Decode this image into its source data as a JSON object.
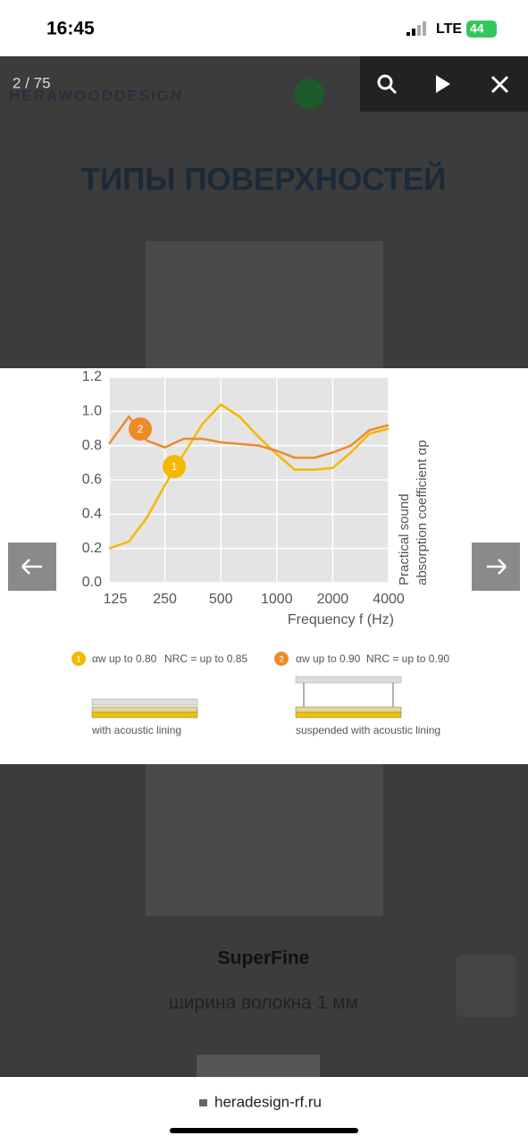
{
  "status_bar": {
    "time": "16:45",
    "network": "LTE",
    "battery": "44"
  },
  "viewer": {
    "counter": "2 / 75"
  },
  "site": {
    "logo": "HERAWOODDESIGN",
    "heading": "ТИПЫ ПОВЕРХНОСТЕЙ",
    "product": "SuperFine",
    "product_note": "ширина волокна 1 мм"
  },
  "browser": {
    "url": "heradesign-rf.ru"
  },
  "chart_data": {
    "type": "line",
    "x_label": "Frequency f (Hz)",
    "y_label": [
      "Practical sound",
      "absorption coefficient αp"
    ],
    "x": [
      125,
      160,
      200,
      250,
      315,
      400,
      500,
      630,
      800,
      1000,
      1250,
      1600,
      2000,
      2500,
      3150,
      4000
    ],
    "xscale": "log",
    "xlim": [
      125,
      4000
    ],
    "xticks": [
      125,
      250,
      500,
      1000,
      2000,
      4000
    ],
    "ylim": [
      0,
      1.2
    ],
    "yticks": [
      {
        "value": 0,
        "label": "0.0"
      },
      0.2,
      0.4,
      0.6,
      0.8,
      {
        "value": 1,
        "label": "1.0"
      },
      1.2
    ],
    "grid": true,
    "series": [
      {
        "name": "1",
        "color": "#f5b800",
        "values": [
          0.2,
          0.24,
          0.38,
          0.57,
          0.75,
          0.93,
          1.04,
          0.97,
          0.85,
          0.75,
          0.66,
          0.66,
          0.67,
          0.76,
          0.87,
          0.9
        ],
        "rating": "αw up to 0.80",
        "nrc": "NRC = up to 0.85",
        "mounting": "with acoustic lining"
      },
      {
        "name": "2",
        "color": "#ee8a2a",
        "values": [
          0.81,
          0.97,
          0.83,
          0.79,
          0.84,
          0.84,
          0.82,
          0.81,
          0.8,
          0.77,
          0.73,
          0.73,
          0.76,
          0.8,
          0.89,
          0.92
        ],
        "rating": "αw up to 0.90",
        "nrc": "NRC = up to 0.90",
        "mounting": "suspended with acoustic lining"
      }
    ]
  }
}
